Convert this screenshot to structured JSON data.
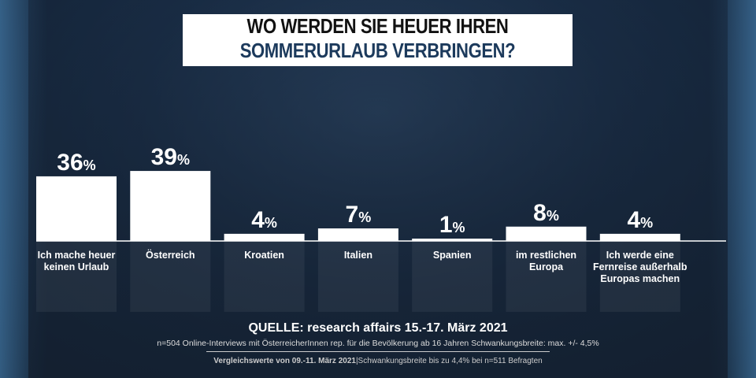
{
  "title": {
    "line1": "WO WERDEN SIE HEUER IHREN",
    "line2": "SOMMERURLAUB VERBRINGEN?"
  },
  "chart_data": {
    "type": "bar",
    "categories": [
      "Ich mache heuer keinen Urlaub",
      "Österreich",
      "Kroatien",
      "Italien",
      "Spanien",
      "im restlichen Europa",
      "Ich werde eine Fernreise außerhalb Europas machen"
    ],
    "category_lines": [
      [
        "Ich mache heuer",
        "keinen Urlaub"
      ],
      [
        "Österreich"
      ],
      [
        "Kroatien"
      ],
      [
        "Italien"
      ],
      [
        "Spanien"
      ],
      [
        "im restlichen",
        "Europa"
      ],
      [
        "Ich werde eine",
        "Fernreise außerhalb",
        "Europas machen"
      ]
    ],
    "values": [
      36,
      39,
      4,
      7,
      1,
      8,
      4
    ],
    "unit": "%",
    "ylim": [
      0,
      40
    ],
    "bar_color": "#ffffff",
    "grid": false
  },
  "source": {
    "title": "QUELLE: research affairs 15.-17. März 2021",
    "detail": "n=504 Online-Interviews mit ÖsterreicherInnen rep. für die Bevölkerung ab 16 Jahren  Schwankungsbreite: max. +/- 4,5%",
    "compare_bold": "Vergleichswerte von 09.-11. März 2021",
    "compare_rest": "|Schwankungsbreite bis zu 4,4% bei n=511 Befragten"
  }
}
